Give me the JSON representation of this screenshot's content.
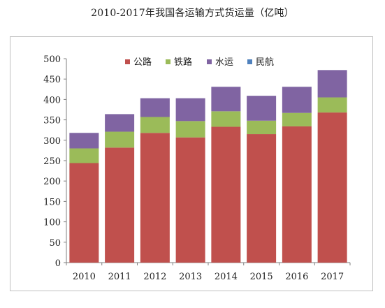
{
  "title": "2010-2017年我国各运输方式货运量（亿吨）",
  "chart_data": {
    "type": "bar",
    "stacked": true,
    "categories": [
      "2010",
      "2011",
      "2012",
      "2013",
      "2014",
      "2015",
      "2016",
      "2017"
    ],
    "series": [
      {
        "name": "公路",
        "color": "#c0504d",
        "values": [
          244,
          282,
          318,
          307,
          333,
          315,
          334,
          368
        ]
      },
      {
        "name": "铁路",
        "color": "#9bbb59",
        "values": [
          36,
          39,
          39,
          40,
          38,
          33,
          33,
          37
        ]
      },
      {
        "name": "水运",
        "color": "#8064a2",
        "values": [
          38,
          43,
          46,
          56,
          60,
          61,
          64,
          67
        ]
      },
      {
        "name": "民航",
        "color": "#4f81bd",
        "values": [
          0.06,
          0.06,
          0.05,
          0.06,
          0.06,
          0.06,
          0.07,
          0.07
        ]
      }
    ],
    "ylim": [
      0,
      500
    ],
    "yticks": [
      "0",
      "50",
      "100",
      "150",
      "200",
      "250",
      "300",
      "350",
      "400",
      "450",
      "500"
    ],
    "grid": false,
    "legend_position": "top"
  }
}
